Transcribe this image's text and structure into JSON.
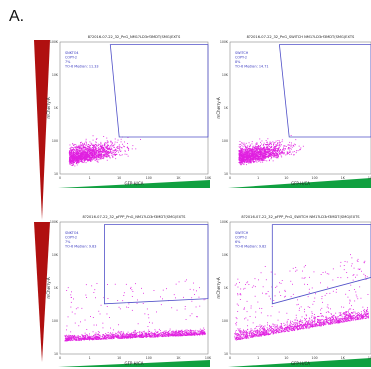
{
  "panel_label": "A.",
  "plots": [
    {
      "title": "8?2016-07-22_32_PnG_NM1?LD3rf3MDT(SMG)EXTS",
      "stats": [
        "SNKTO4",
        "COPY-2",
        "7%",
        "TO-6 Median: 11.33"
      ],
      "xlabel": "GFP-H/CA",
      "ylabel": "mCherry-A",
      "xticks": [
        "0",
        "1",
        "10",
        "100",
        "1K",
        "10K"
      ],
      "yticks": [
        "10",
        "100",
        "1K",
        "10K",
        "100K"
      ],
      "density": "high_bottom_left",
      "color": "#e020e0"
    },
    {
      "title": "8?2016-07-22_32_PnG_SWITCH NM1?LD3rf3MDT(SMG)EXTS",
      "stats": [
        "SWITCH",
        "COPY-2",
        "8%",
        "TO-6 Median: 14.71"
      ],
      "xlabel": "GFP-H/CA",
      "ylabel": "mCherry-A",
      "xticks": [
        "0",
        "1",
        "10",
        "100",
        "1K",
        "10K"
      ],
      "yticks": [
        "10",
        "100",
        "1K",
        "10K",
        "100K"
      ],
      "density": "high_bottom_left",
      "color": "#e020e0"
    },
    {
      "title": "8?2016-07-22_32_pFPP_PnG_NM1?LD3rf3MDT(SMG)EXTS",
      "stats": [
        "SNKTO4",
        "COPY-2",
        "7%",
        "TO-6 Median: 9.83"
      ],
      "xlabel": "GFP-H/CA",
      "ylabel": "mCherry-A",
      "xticks": [
        "0",
        "1",
        "10",
        "100",
        "1K",
        "10K"
      ],
      "yticks": [
        "10",
        "100",
        "1K",
        "10K",
        "100K"
      ],
      "density": "low_spread",
      "color": "#e020e0"
    },
    {
      "title": "8?2016-07-22_32_pFPP_PnG_SWITCH NM1?LD3rf3MDT(SMG)EXTS",
      "stats": [
        "SWITCH",
        "COPY-2",
        "6%",
        "TO-6 Median: 9.82"
      ],
      "xlabel": "GFP-H/CA",
      "ylabel": "mCherry-A",
      "xticks": [
        "0",
        "1",
        "10",
        "100",
        "1K",
        "10K"
      ],
      "yticks": [
        "10",
        "100",
        "1K",
        "10K",
        "100K"
      ],
      "density": "wide_spread",
      "color": "#e020e0"
    }
  ],
  "colors": {
    "red_wedge": "#b01010",
    "green_wedge": "#10a040",
    "gate_stroke": "#5050c8",
    "axis": "#333333",
    "dots": "#e020e0"
  }
}
